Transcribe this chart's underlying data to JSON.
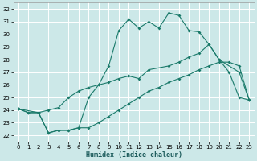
{
  "xlabel": "Humidex (Indice chaleur)",
  "xlim": [
    -0.5,
    23.5
  ],
  "ylim": [
    21.5,
    32.5
  ],
  "yticks": [
    22,
    23,
    24,
    25,
    26,
    27,
    28,
    29,
    30,
    31,
    32
  ],
  "xticks": [
    0,
    1,
    2,
    3,
    4,
    5,
    6,
    7,
    8,
    9,
    10,
    11,
    12,
    13,
    14,
    15,
    16,
    17,
    18,
    19,
    20,
    21,
    22,
    23
  ],
  "bg_color": "#cce8e8",
  "grid_color": "#ffffff",
  "line_color": "#1a7a6a",
  "line1_x": [
    0,
    1,
    2,
    3,
    4,
    5,
    6,
    7,
    8,
    9,
    10,
    11,
    12,
    13,
    14,
    15,
    16,
    17,
    18,
    19,
    20,
    21,
    22,
    23
  ],
  "line1_y": [
    24.1,
    23.8,
    23.8,
    22.2,
    22.4,
    22.4,
    22.6,
    22.6,
    23.0,
    23.5,
    24.0,
    24.5,
    25.0,
    25.5,
    25.8,
    26.2,
    26.5,
    26.8,
    27.2,
    27.5,
    27.8,
    27.8,
    27.5,
    24.8
  ],
  "line2_x": [
    0,
    2,
    3,
    4,
    5,
    6,
    7,
    8,
    9,
    10,
    11,
    12,
    13,
    15,
    16,
    17,
    18,
    19,
    20,
    22,
    23
  ],
  "line2_y": [
    24.1,
    23.8,
    24.0,
    24.2,
    25.0,
    25.5,
    25.8,
    26.0,
    26.2,
    26.5,
    26.7,
    26.5,
    27.2,
    27.5,
    27.8,
    28.2,
    28.5,
    29.2,
    28.0,
    27.0,
    24.8
  ],
  "line3_x": [
    0,
    1,
    2,
    3,
    4,
    5,
    6,
    7,
    8,
    9,
    10,
    11,
    12,
    13,
    14,
    15,
    16,
    17,
    18,
    19,
    20,
    21,
    22,
    23
  ],
  "line3_y": [
    24.1,
    23.8,
    23.8,
    22.2,
    22.4,
    22.4,
    22.6,
    25.0,
    26.0,
    27.5,
    30.3,
    31.2,
    30.5,
    31.0,
    30.5,
    31.7,
    31.5,
    30.3,
    30.2,
    29.2,
    28.0,
    27.0,
    25.0,
    24.8
  ]
}
